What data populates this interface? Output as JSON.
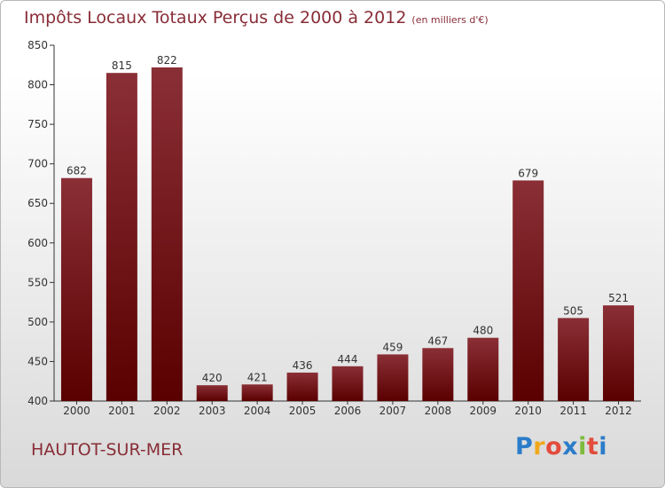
{
  "title_main": "Impôts Locaux Totaux Perçus de 2000 à 2012",
  "title_unit": "(en milliers d'€)",
  "commune": "HAUTOT-SUR-MER",
  "logo": {
    "letters": [
      "P",
      "r",
      "o",
      "x",
      "i",
      "t",
      "i"
    ],
    "colors": [
      "#2b7cc9",
      "#f0a81c",
      "#e34b3c",
      "#2b7cc9",
      "#7dbb3c",
      "#e34b3c",
      "#2b7cc9"
    ]
  },
  "colors": {
    "bar_top": "#8a2f36",
    "bar_bottom": "#5a0000",
    "text_accent": "#882d37"
  },
  "chart_data": {
    "type": "bar",
    "categories": [
      "2000",
      "2001",
      "2002",
      "2003",
      "2004",
      "2005",
      "2006",
      "2007",
      "2008",
      "2009",
      "2010",
      "2011",
      "2012"
    ],
    "values": [
      682,
      815,
      822,
      420,
      421,
      436,
      444,
      459,
      467,
      480,
      679,
      505,
      521
    ],
    "value_labels": [
      "682",
      "815",
      "822",
      "420",
      "421",
      "436",
      "444",
      "459",
      "467",
      "480",
      "679",
      "505",
      "521"
    ],
    "ylim": [
      400,
      850
    ],
    "yticks": [
      "400",
      "450",
      "500",
      "550",
      "600",
      "650",
      "700",
      "750",
      "800",
      "850"
    ],
    "ytick_values": [
      400,
      450,
      500,
      550,
      600,
      650,
      700,
      750,
      800,
      850
    ],
    "title": "Impôts Locaux Totaux Perçus de 2000 à 2012",
    "xlabel": "",
    "ylabel": "",
    "grid": false,
    "legend": "none"
  }
}
